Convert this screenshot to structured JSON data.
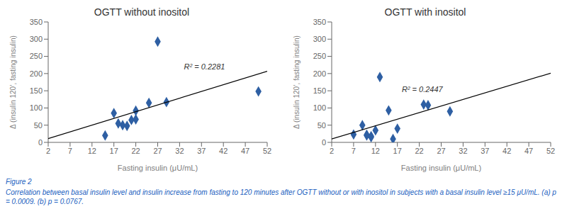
{
  "chart_data": [
    {
      "type": "scatter",
      "title": "OGTT without inositol",
      "x_label": "Fasting insulin (μU/mL)",
      "y_label": "Δ (insulin 120’, fasting insulin)",
      "xlim": [
        2,
        52
      ],
      "xticks": [
        2,
        7,
        12,
        17,
        22,
        27,
        32,
        37,
        42,
        47,
        52
      ],
      "ylim": [
        0,
        350
      ],
      "yticks": [
        0,
        50,
        100,
        150,
        200,
        250,
        300,
        350
      ],
      "grid": false,
      "series": [
        {
          "type": "scatter",
          "x": [
            15,
            17,
            18,
            19,
            20,
            21,
            22,
            22,
            25,
            27,
            29,
            50
          ],
          "values": [
            20,
            85,
            55,
            50,
            48,
            65,
            92,
            67,
            115,
            293,
            117,
            148
          ],
          "color": "#2E5FA3",
          "marker": "diamond"
        },
        {
          "type": "line",
          "x": [
            2,
            52
          ],
          "values": [
            11.14156,
            206.79315
          ],
          "color": "#000000",
          "line_style": "solid"
        }
      ],
      "annotations": [
        {
          "text": "R² = 0.2281",
          "x": 33,
          "y": 220
        }
      ]
    },
    {
      "type": "scatter",
      "title": "OGTT with inositol",
      "x_label": "Fasting insulin (μU/mL)",
      "y_label": "Δ (insulin 120’, fasting insulin)",
      "xlim": [
        2,
        52
      ],
      "xticks": [
        2,
        7,
        12,
        17,
        22,
        27,
        32,
        37,
        42,
        47,
        52
      ],
      "ylim": [
        0,
        350
      ],
      "yticks": [
        0,
        50,
        100,
        150,
        200,
        250,
        300,
        350
      ],
      "grid": false,
      "series": [
        {
          "type": "scatter",
          "x": [
            7,
            9,
            10,
            10,
            11,
            11,
            12,
            13,
            15,
            16,
            17,
            23,
            24,
            29
          ],
          "values": [
            23,
            50,
            22,
            20,
            18,
            15,
            35,
            190,
            93,
            10,
            40,
            110,
            108,
            90
          ],
          "color": "#2E5FA3",
          "marker": "diamond"
        },
        {
          "type": "line",
          "x": [
            2,
            52
          ],
          "values": [
            9.9351,
            201.25035
          ],
          "color": "#000000",
          "line_style": "solid"
        }
      ],
      "annotations": [
        {
          "text": "R² = 0.2447",
          "x": 18,
          "y": 155
        }
      ]
    }
  ],
  "annotations": [
    {
      "text": "Figure 2",
      "color": "#2060c0"
    },
    {
      "text": "Correlation between basal insulin level and insulin increase from fasting to 120 minutes after OGTT without or with inositol in subjects with a basal insulin level ≥15 μU/mL. (a) p = 0.0009. (b) p = 0.0767.",
      "color": "#2060c0"
    }
  ]
}
